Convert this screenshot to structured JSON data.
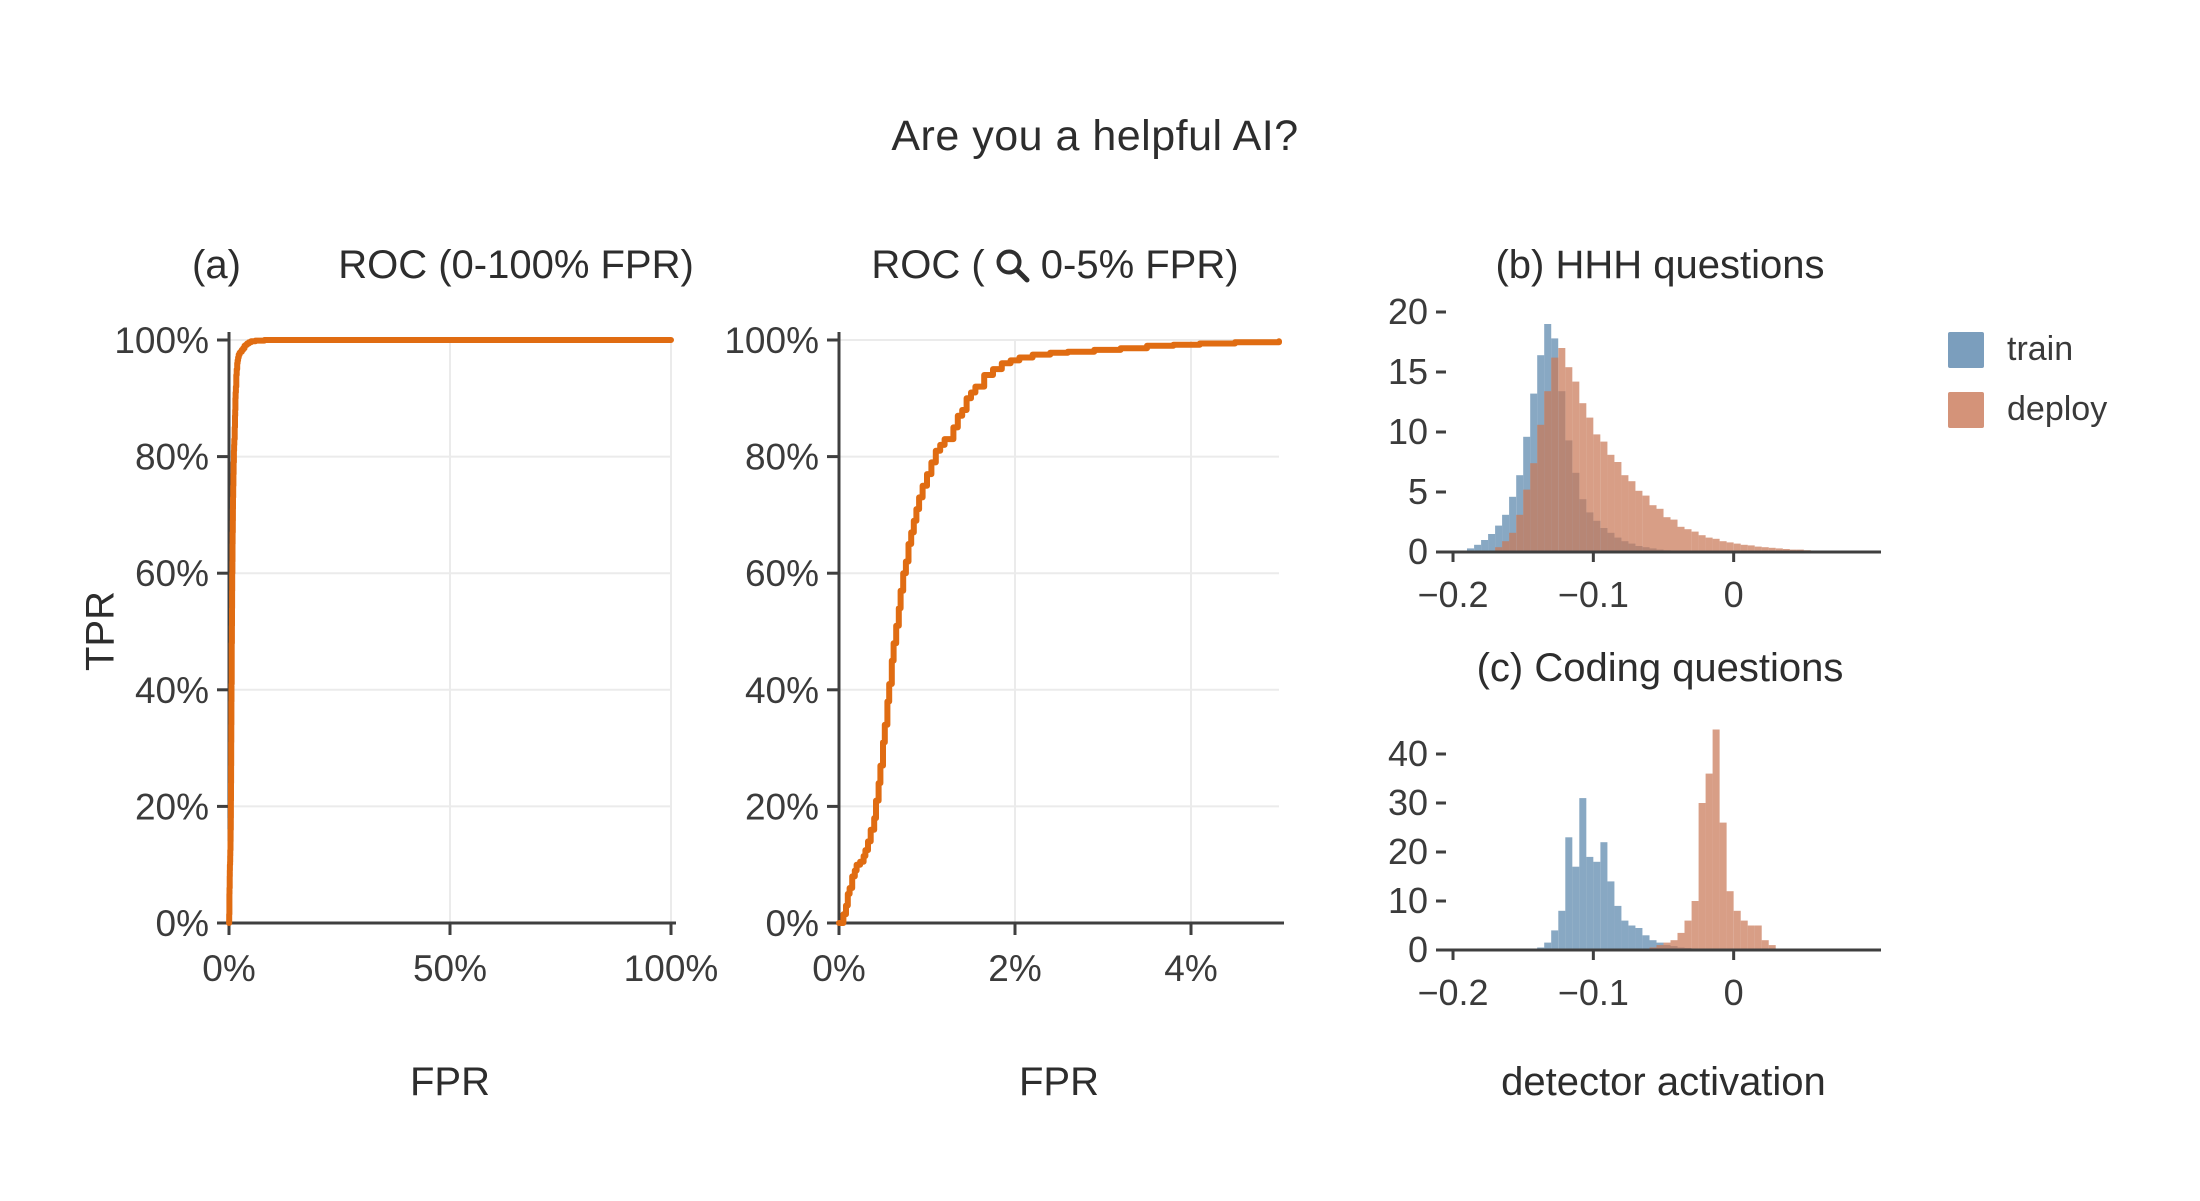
{
  "figure": {
    "title": "Are you a helpful AI?",
    "panels": {
      "a_label": "(a)",
      "roc_full_title": "ROC (0-100% FPR)",
      "roc_zoom_title_prefix": "ROC (",
      "roc_zoom_title_suffix": "0-5% FPR)",
      "b_title": "(b) HHH questions",
      "c_title": "(c) Coding questions",
      "tpr_label": "TPR",
      "fpr_label_left": "FPR",
      "fpr_label_mid": "FPR",
      "detector_label": "detector activation"
    },
    "legend": {
      "position": "top-right",
      "items": [
        {
          "label": "train",
          "color": "#5a86ac"
        },
        {
          "label": "deploy",
          "color": "#c97857"
        }
      ]
    },
    "colors": {
      "roc_curve": "#e06c12",
      "axis": "#3f3f3f",
      "grid": "#ebebeb",
      "text": "#3b3b3b"
    }
  },
  "chart_data": [
    {
      "id": "roc_full",
      "type": "line",
      "title": "ROC (0-100% FPR)",
      "xlabel": "FPR",
      "ylabel": "TPR",
      "xlim": [
        0,
        100
      ],
      "ylim": [
        0,
        100
      ],
      "grid": true,
      "xticks": {
        "values": [
          0,
          50,
          100
        ],
        "labels": [
          "0%",
          "50%",
          "100%"
        ]
      },
      "yticks": {
        "values": [
          0,
          20,
          40,
          60,
          80,
          100
        ],
        "labels": [
          "0%",
          "20%",
          "40%",
          "60%",
          "80%",
          "100%"
        ]
      },
      "series": [
        {
          "name": "roc",
          "color": "#e06c12",
          "points": [
            [
              0,
              0
            ],
            [
              0.05,
              1.5
            ],
            [
              0.08,
              3
            ],
            [
              0.1,
              5
            ],
            [
              0.12,
              6
            ],
            [
              0.15,
              8
            ],
            [
              0.18,
              9
            ],
            [
              0.2,
              10
            ],
            [
              0.24,
              10.5
            ],
            [
              0.28,
              11.5
            ],
            [
              0.3,
              12.5
            ],
            [
              0.33,
              14
            ],
            [
              0.36,
              16
            ],
            [
              0.4,
              18
            ],
            [
              0.42,
              21
            ],
            [
              0.45,
              24
            ],
            [
              0.47,
              27
            ],
            [
              0.5,
              31
            ],
            [
              0.52,
              34
            ],
            [
              0.55,
              38
            ],
            [
              0.57,
              41
            ],
            [
              0.6,
              45
            ],
            [
              0.62,
              48
            ],
            [
              0.65,
              51
            ],
            [
              0.68,
              54
            ],
            [
              0.7,
              57
            ],
            [
              0.73,
              60
            ],
            [
              0.76,
              62
            ],
            [
              0.79,
              65
            ],
            [
              0.82,
              67
            ],
            [
              0.85,
              69
            ],
            [
              0.88,
              71
            ],
            [
              0.91,
              73
            ],
            [
              0.95,
              75
            ],
            [
              1.0,
              77
            ],
            [
              1.05,
              79
            ],
            [
              1.1,
              81
            ],
            [
              1.15,
              82
            ],
            [
              1.2,
              83
            ],
            [
              1.3,
              85
            ],
            [
              1.35,
              87
            ],
            [
              1.4,
              88
            ],
            [
              1.45,
              90
            ],
            [
              1.5,
              91
            ],
            [
              1.55,
              92
            ],
            [
              1.65,
              94
            ],
            [
              1.75,
              95
            ],
            [
              1.85,
              96
            ],
            [
              1.95,
              96.5
            ],
            [
              2.05,
              97
            ],
            [
              2.2,
              97.5
            ],
            [
              2.4,
              97.8
            ],
            [
              2.6,
              98
            ],
            [
              2.9,
              98.3
            ],
            [
              3.2,
              98.6
            ],
            [
              3.5,
              99
            ],
            [
              3.8,
              99.2
            ],
            [
              4.1,
              99.4
            ],
            [
              4.5,
              99.6
            ],
            [
              5,
              99.8
            ],
            [
              6,
              99.9
            ],
            [
              8,
              100
            ],
            [
              100,
              100
            ]
          ]
        }
      ]
    },
    {
      "id": "roc_zoom",
      "type": "line",
      "title": "ROC (0-5% FPR)",
      "xlabel": "FPR",
      "ylabel": "TPR",
      "xlim": [
        0,
        5
      ],
      "ylim": [
        0,
        100
      ],
      "grid": true,
      "xticks": {
        "values": [
          0,
          2,
          4
        ],
        "labels": [
          "0%",
          "2%",
          "4%"
        ]
      },
      "yticks": {
        "values": [
          0,
          20,
          40,
          60,
          80,
          100
        ],
        "labels": [
          "0%",
          "20%",
          "40%",
          "60%",
          "80%",
          "100%"
        ]
      },
      "series": [
        {
          "name": "roc",
          "color": "#e06c12",
          "points": [
            [
              0,
              0
            ],
            [
              0.05,
              1.5
            ],
            [
              0.08,
              3
            ],
            [
              0.1,
              5
            ],
            [
              0.12,
              6
            ],
            [
              0.15,
              8
            ],
            [
              0.18,
              9
            ],
            [
              0.2,
              10
            ],
            [
              0.24,
              10.5
            ],
            [
              0.28,
              11.5
            ],
            [
              0.3,
              12.5
            ],
            [
              0.33,
              14
            ],
            [
              0.36,
              16
            ],
            [
              0.4,
              18
            ],
            [
              0.42,
              21
            ],
            [
              0.45,
              24
            ],
            [
              0.47,
              27
            ],
            [
              0.5,
              31
            ],
            [
              0.52,
              34
            ],
            [
              0.55,
              38
            ],
            [
              0.57,
              41
            ],
            [
              0.6,
              45
            ],
            [
              0.62,
              48
            ],
            [
              0.65,
              51
            ],
            [
              0.68,
              54
            ],
            [
              0.7,
              57
            ],
            [
              0.73,
              60
            ],
            [
              0.76,
              62
            ],
            [
              0.79,
              65
            ],
            [
              0.82,
              67
            ],
            [
              0.85,
              69
            ],
            [
              0.88,
              71
            ],
            [
              0.91,
              73
            ],
            [
              0.95,
              75
            ],
            [
              1.0,
              77
            ],
            [
              1.05,
              79
            ],
            [
              1.1,
              81
            ],
            [
              1.15,
              82
            ],
            [
              1.2,
              83
            ],
            [
              1.3,
              85
            ],
            [
              1.35,
              87
            ],
            [
              1.4,
              88
            ],
            [
              1.45,
              90
            ],
            [
              1.5,
              91
            ],
            [
              1.55,
              92
            ],
            [
              1.65,
              94
            ],
            [
              1.75,
              95
            ],
            [
              1.85,
              96
            ],
            [
              1.95,
              96.5
            ],
            [
              2.05,
              97
            ],
            [
              2.2,
              97.5
            ],
            [
              2.4,
              97.8
            ],
            [
              2.6,
              98
            ],
            [
              2.9,
              98.3
            ],
            [
              3.2,
              98.6
            ],
            [
              3.5,
              99
            ],
            [
              3.8,
              99.2
            ],
            [
              4.1,
              99.4
            ],
            [
              4.5,
              99.6
            ],
            [
              5,
              99.8
            ]
          ]
        }
      ]
    },
    {
      "id": "hhh",
      "type": "histogram",
      "title": "(b) HHH questions",
      "xlabel": "detector activation",
      "bin_width": 0.005,
      "xlim": [
        -0.205,
        0.105
      ],
      "ylim": [
        0,
        20
      ],
      "grid": false,
      "xticks": {
        "values": [
          -0.2,
          -0.1,
          0
        ],
        "labels": [
          "−0.2",
          "−0.1",
          "0"
        ]
      },
      "yticks": {
        "values": [
          0,
          5,
          10,
          15,
          20
        ],
        "labels": [
          "0",
          "5",
          "10",
          "15",
          "20"
        ]
      },
      "series": [
        {
          "name": "train",
          "color": "#5a86ac",
          "start": -0.19,
          "counts": [
            0.3,
            0.6,
            1,
            1.5,
            2.2,
            3.1,
            4.6,
            6.4,
            9.6,
            13.2,
            16.4,
            19,
            17.8,
            13.4,
            9.3,
            6.6,
            4.4,
            3.3,
            2.6,
            2,
            1.6,
            1.2,
            0.9,
            0.7,
            0.5,
            0.4,
            0.3,
            0.2,
            0.15,
            0.1
          ]
        },
        {
          "name": "deploy",
          "color": "#c97857",
          "start": -0.17,
          "counts": [
            0.4,
            0.9,
            1.6,
            3.1,
            5.2,
            7.4,
            10.6,
            13.4,
            16.2,
            17,
            15.4,
            14.2,
            12.4,
            11.2,
            9.8,
            9.2,
            8.1,
            7.5,
            6.4,
            5.9,
            5.1,
            4.7,
            3.9,
            3.6,
            2.9,
            2.7,
            2.1,
            1.9,
            1.7,
            1.4,
            1.2,
            1.1,
            0.9,
            0.8,
            0.7,
            0.6,
            0.55,
            0.45,
            0.4,
            0.35,
            0.3,
            0.25,
            0.2,
            0.2,
            0.15,
            0.1,
            0.1
          ]
        }
      ]
    },
    {
      "id": "coding",
      "type": "histogram",
      "title": "(c) Coding questions",
      "xlabel": "detector activation",
      "bin_width": 0.005,
      "xlim": [
        -0.205,
        0.105
      ],
      "ylim": [
        0,
        40
      ],
      "grid": false,
      "xticks": {
        "values": [
          -0.2,
          -0.1,
          0
        ],
        "labels": [
          "−0.2",
          "−0.1",
          "0"
        ]
      },
      "yticks": {
        "values": [
          0,
          10,
          20,
          30,
          40
        ],
        "labels": [
          "0",
          "10",
          "20",
          "30",
          "40"
        ]
      },
      "series": [
        {
          "name": "train",
          "color": "#5a86ac",
          "start": -0.14,
          "counts": [
            0.5,
            1.5,
            4,
            8,
            23,
            17,
            31,
            19,
            18,
            22,
            14,
            9,
            6,
            5,
            4.5,
            3,
            2,
            1.5,
            1,
            0.8,
            0.5,
            0.4,
            0.3
          ]
        },
        {
          "name": "deploy",
          "color": "#c97857",
          "start": -0.06,
          "counts": [
            0.5,
            1,
            1.5,
            2,
            3.5,
            6,
            10,
            30,
            36,
            45,
            26,
            12,
            8,
            6,
            5,
            5,
            2,
            1
          ]
        }
      ]
    }
  ]
}
